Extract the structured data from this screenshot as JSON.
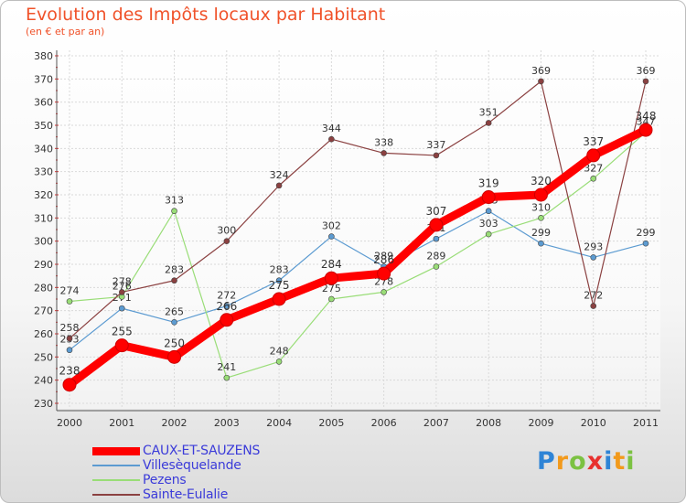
{
  "header": {
    "title": "Evolution des Impôts locaux par Habitant",
    "subtitle": "(en € et par an)"
  },
  "logo": {
    "letters": [
      "P",
      "r",
      "o",
      "x",
      "i",
      "t",
      "i"
    ],
    "colors": [
      "#2e84d6",
      "#f29a1c",
      "#7cc242",
      "#e8312f",
      "#2e84d6",
      "#f29a1c",
      "#7cc242"
    ]
  },
  "chart_data": {
    "type": "line",
    "title": "Evolution des Impôts locaux par Habitant",
    "subtitle": "(en € et par an)",
    "xlabel": "",
    "ylabel": "",
    "ylim": [
      230,
      380
    ],
    "yticks": [
      230,
      240,
      250,
      260,
      270,
      280,
      290,
      300,
      310,
      320,
      330,
      340,
      350,
      360,
      370,
      380
    ],
    "grid": true,
    "legend_position": "bottom-left",
    "x": [
      "2000",
      "2001",
      "2002",
      "2003",
      "2004",
      "2005",
      "2006",
      "2007",
      "2008",
      "2009",
      "2010",
      "2011"
    ],
    "series": [
      {
        "name": "CAUX-ET-SAUZENS",
        "color": "#ff0000",
        "values": [
          238,
          255,
          250,
          266,
          275,
          284,
          286,
          307,
          319,
          320,
          337,
          348
        ],
        "labels": [
          "238",
          "255",
          "250",
          "266",
          "275",
          "284",
          "286",
          "307",
          "319",
          "320",
          "337",
          "348"
        ],
        "emphasis": true
      },
      {
        "name": "Villesèquelande",
        "color": "#5c9bd1",
        "values": [
          253,
          271,
          265,
          272,
          283,
          302,
          289,
          301,
          313,
          299,
          293,
          299
        ],
        "labels": [
          "253",
          "271",
          "265",
          "272",
          "283",
          "302",
          "289",
          "301",
          "313",
          "299",
          "293",
          "299"
        ],
        "emphasis": false
      },
      {
        "name": "Pezens",
        "color": "#99dd77",
        "values": [
          274,
          276,
          313,
          241,
          248,
          275,
          278,
          289,
          303,
          310,
          327,
          347
        ],
        "labels": [
          "274",
          "276",
          "313",
          "241",
          "248",
          "275",
          "278",
          "289",
          "303",
          "310",
          "327",
          "347"
        ],
        "emphasis": false
      },
      {
        "name": "Sainte-Eulalie",
        "color": "#8b4141",
        "values": [
          258,
          278,
          283,
          300,
          324,
          344,
          338,
          337,
          351,
          369,
          272,
          369
        ],
        "labels": [
          "258",
          "278",
          "283",
          "300",
          "324",
          "344",
          "338",
          "337",
          "351",
          "369",
          "272",
          "369"
        ],
        "emphasis": false
      }
    ]
  }
}
